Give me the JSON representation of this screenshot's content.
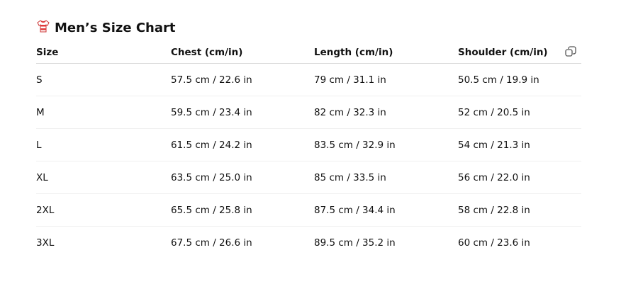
{
  "title": "Men’s Size Chart",
  "title_icon": "striped-shirt-icon",
  "columns": [
    "Size",
    "Chest (cm/in)",
    "Length (cm/in)",
    "Shoulder (cm/in)"
  ],
  "rows": [
    [
      "S",
      "57.5 cm / 22.6 in",
      "79 cm / 31.1 in",
      "50.5 cm / 19.9 in"
    ],
    [
      "M",
      "59.5 cm / 23.4 in",
      "82 cm / 32.3 in",
      "52 cm / 20.5 in"
    ],
    [
      "L",
      "61.5 cm / 24.2 in",
      "83.5 cm / 32.9 in",
      "54 cm / 21.3 in"
    ],
    [
      "XL",
      "63.5 cm / 25.0 in",
      "85 cm / 33.5 in",
      "56 cm / 22.0 in"
    ],
    [
      "2XL",
      "65.5 cm / 25.8 in",
      "87.5 cm / 34.4 in",
      "58 cm / 22.8 in"
    ],
    [
      "3XL",
      "67.5 cm / 26.6 in",
      "89.5 cm / 35.2 in",
      "60 cm / 23.6 in"
    ]
  ],
  "copy_icon": "copy-icon"
}
